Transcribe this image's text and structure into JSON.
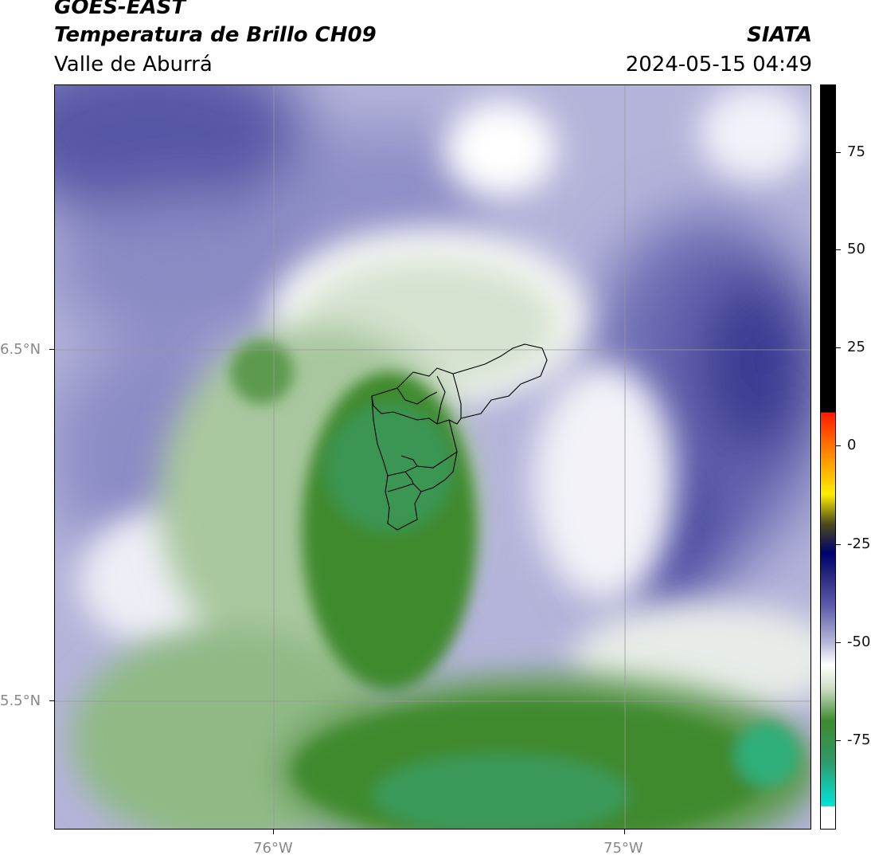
{
  "header": {
    "satellite": "GOES-EAST",
    "product": "Temperatura de Brillo CH09",
    "region": "Valle de Aburrá",
    "org": "SIATA",
    "datetime": "2024-05-15 04:49"
  },
  "axes": {
    "lat_labels": [
      "6.5°N",
      "5.5°N"
    ],
    "lon_labels": [
      "76°W",
      "75°W"
    ]
  },
  "colorbar": {
    "tick_labels": [
      "75",
      "50",
      "25",
      "0",
      "-25",
      "-50",
      "-75"
    ],
    "colors": {
      "cyan": "#00e5d8",
      "seagreen": "#2e9a6a",
      "green": "#3d8a2e",
      "lightgreen": "#cfe0c9",
      "white": "#ffffff",
      "lavender": "#b8b8dc",
      "purple": "#5c5ca8",
      "navy": "#1c1c7a",
      "darknavy": "#000070",
      "olive": "#4a4a1c",
      "yellow": "#ffee00",
      "orange": "#ff8800",
      "red": "#ff1a00",
      "black": "#000000"
    }
  }
}
